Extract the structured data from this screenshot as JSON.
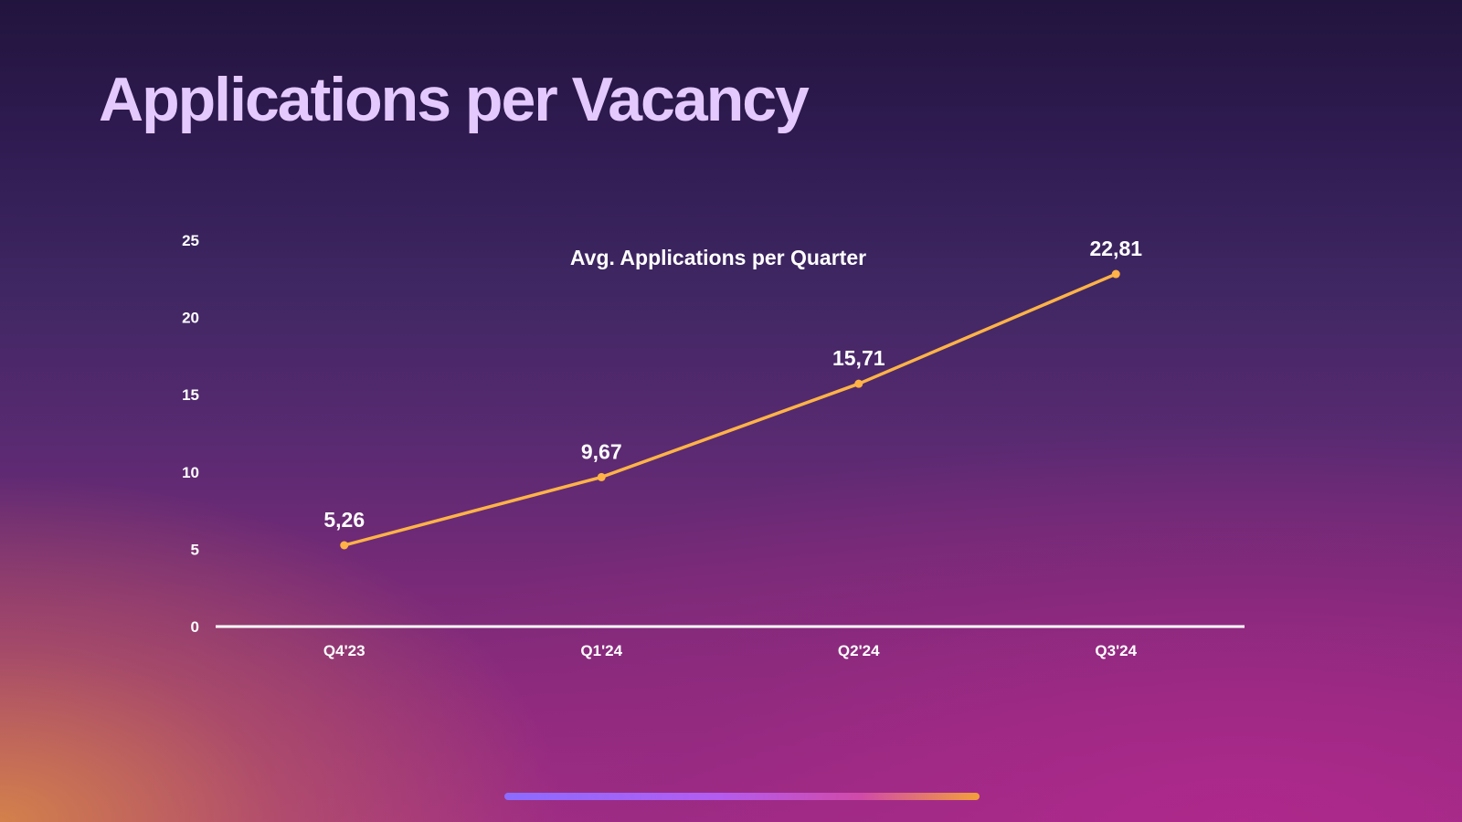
{
  "slide": {
    "title": "Applications per Vacancy"
  },
  "colors": {
    "title": "#e4c9ff",
    "line": "#ffb347",
    "text": "#ffffff",
    "axis": "#ffffff"
  },
  "chart_data": {
    "type": "line",
    "title": "Avg. Applications per Quarter",
    "xlabel": "",
    "ylabel": "",
    "categories": [
      "Q4'23",
      "Q1'24",
      "Q2'24",
      "Q3'24"
    ],
    "series": [
      {
        "values": [
          5.26,
          9.67,
          15.71,
          22.81
        ],
        "labels": [
          "5,26",
          "9,67",
          "15,71",
          "22,81"
        ]
      }
    ],
    "ylim": [
      0,
      25
    ],
    "yticks": [
      0,
      5,
      10,
      15,
      20,
      25
    ],
    "grid": false,
    "legend": "none"
  }
}
